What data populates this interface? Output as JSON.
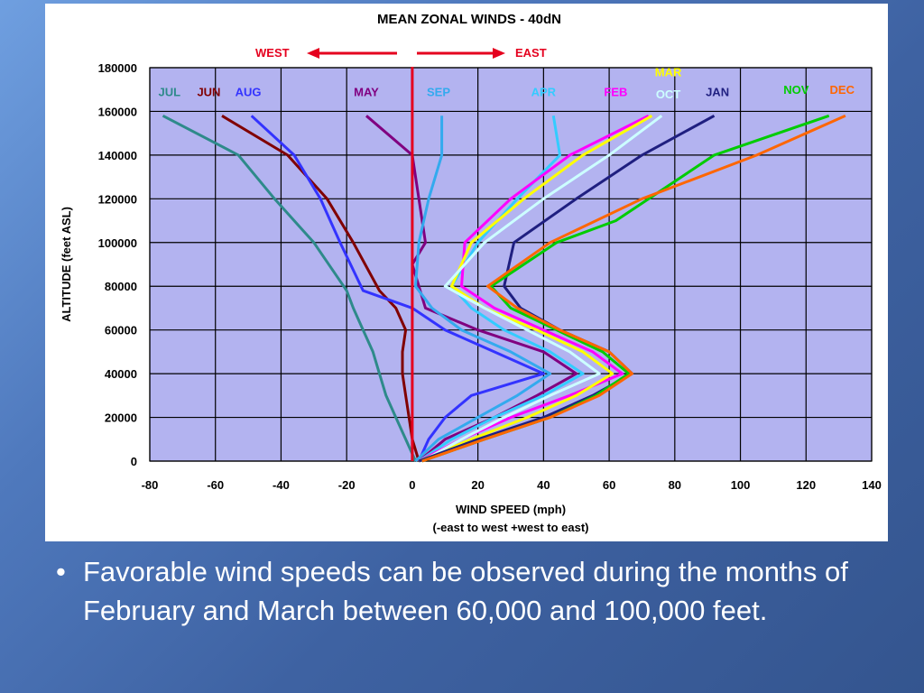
{
  "caption": {
    "bullet": "•",
    "text": "Favorable wind speeds can be observed during the months of February and March between 60,000 and 100,000 feet."
  },
  "chart_data": {
    "type": "line",
    "title": "MEAN ZONAL WINDS - 40dN",
    "xlabel": "WIND SPEED (mph)",
    "xlabel_note": "(-east to west  +west to east)",
    "ylabel": "ALTITUDE (feet ASL)",
    "xlim": [
      -80,
      140
    ],
    "ylim": [
      0,
      180000
    ],
    "x_ticks": [
      -80,
      -60,
      -40,
      -20,
      0,
      20,
      40,
      60,
      80,
      100,
      120,
      140
    ],
    "y_ticks": [
      0,
      20000,
      40000,
      60000,
      80000,
      100000,
      120000,
      140000,
      160000,
      180000
    ],
    "grid": true,
    "plot_bg": "#b3b3f0",
    "zero_line_color": "#e5001e",
    "direction_labels": {
      "west": "WEST",
      "east": "EAST",
      "arrow_color": "#e5001e"
    },
    "series": [
      {
        "name": "JUL",
        "color": "#2e8a8a",
        "points": [
          [
            1,
            0
          ],
          [
            -2,
            10000
          ],
          [
            -5,
            20000
          ],
          [
            -8,
            30000
          ],
          [
            -10,
            40000
          ],
          [
            -12,
            50000
          ],
          [
            -15,
            60000
          ],
          [
            -18,
            70000
          ],
          [
            -20,
            78000
          ],
          [
            -30,
            100000
          ],
          [
            -42,
            120000
          ],
          [
            -53,
            140000
          ],
          [
            -76,
            158000
          ]
        ]
      },
      {
        "name": "JUN",
        "color": "#800000",
        "points": [
          [
            2,
            0
          ],
          [
            0,
            10000
          ],
          [
            -1,
            20000
          ],
          [
            -2,
            30000
          ],
          [
            -3,
            40000
          ],
          [
            -3,
            50000
          ],
          [
            -2,
            60000
          ],
          [
            -5,
            70000
          ],
          [
            -10,
            78000
          ],
          [
            -18,
            100000
          ],
          [
            -26,
            120000
          ],
          [
            -38,
            140000
          ],
          [
            -58,
            158000
          ]
        ]
      },
      {
        "name": "AUG",
        "color": "#3333ff",
        "points": [
          [
            2,
            0
          ],
          [
            5,
            10000
          ],
          [
            10,
            20000
          ],
          [
            18,
            30000
          ],
          [
            40,
            40000
          ],
          [
            25,
            50000
          ],
          [
            10,
            60000
          ],
          [
            0,
            70000
          ],
          [
            -15,
            78000
          ],
          [
            -22,
            100000
          ],
          [
            -28,
            120000
          ],
          [
            -36,
            140000
          ],
          [
            -49,
            158000
          ]
        ]
      },
      {
        "name": "MAY",
        "color": "#800080",
        "points": [
          [
            2,
            0
          ],
          [
            10,
            10000
          ],
          [
            25,
            20000
          ],
          [
            38,
            30000
          ],
          [
            50,
            40000
          ],
          [
            40,
            50000
          ],
          [
            20,
            60000
          ],
          [
            4,
            70000
          ],
          [
            0,
            90000
          ],
          [
            4,
            100000
          ],
          [
            2,
            120000
          ],
          [
            0,
            140000
          ],
          [
            -14,
            158000
          ]
        ]
      },
      {
        "name": "SEP",
        "color": "#33aaee",
        "points": [
          [
            1,
            0
          ],
          [
            8,
            10000
          ],
          [
            20,
            20000
          ],
          [
            32,
            30000
          ],
          [
            42,
            40000
          ],
          [
            30,
            50000
          ],
          [
            15,
            60000
          ],
          [
            6,
            70000
          ],
          [
            1,
            80000
          ],
          [
            2,
            100000
          ],
          [
            5,
            120000
          ],
          [
            9,
            140000
          ],
          [
            9,
            158000
          ]
        ]
      },
      {
        "name": "APR",
        "color": "#33ccff",
        "points": [
          [
            2,
            0
          ],
          [
            12,
            10000
          ],
          [
            25,
            20000
          ],
          [
            40,
            30000
          ],
          [
            52,
            40000
          ],
          [
            42,
            50000
          ],
          [
            28,
            60000
          ],
          [
            18,
            70000
          ],
          [
            12,
            80000
          ],
          [
            20,
            100000
          ],
          [
            32,
            120000
          ],
          [
            45,
            140000
          ],
          [
            43,
            158000
          ]
        ]
      },
      {
        "name": "FEB",
        "color": "#ff00ff",
        "points": [
          [
            2,
            0
          ],
          [
            15,
            10000
          ],
          [
            30,
            20000
          ],
          [
            48,
            30000
          ],
          [
            64,
            40000
          ],
          [
            55,
            50000
          ],
          [
            40,
            60000
          ],
          [
            25,
            70000
          ],
          [
            15,
            80000
          ],
          [
            16,
            100000
          ],
          [
            30,
            120000
          ],
          [
            48,
            140000
          ],
          [
            72,
            158000
          ]
        ]
      },
      {
        "name": "MAR",
        "color": "#ffff00",
        "points": [
          [
            2,
            0
          ],
          [
            18,
            10000
          ],
          [
            35,
            20000
          ],
          [
            50,
            30000
          ],
          [
            61,
            40000
          ],
          [
            52,
            50000
          ],
          [
            38,
            60000
          ],
          [
            22,
            70000
          ],
          [
            12,
            80000
          ],
          [
            18,
            100000
          ],
          [
            34,
            120000
          ],
          [
            52,
            140000
          ],
          [
            73,
            158000
          ]
        ]
      },
      {
        "name": "OCT",
        "color": "#ccffff",
        "points": [
          [
            3,
            0
          ],
          [
            15,
            10000
          ],
          [
            28,
            20000
          ],
          [
            42,
            30000
          ],
          [
            57,
            40000
          ],
          [
            48,
            50000
          ],
          [
            35,
            60000
          ],
          [
            22,
            70000
          ],
          [
            10,
            80000
          ],
          [
            22,
            100000
          ],
          [
            40,
            120000
          ],
          [
            60,
            140000
          ],
          [
            76,
            158000
          ]
        ]
      },
      {
        "name": "JAN",
        "color": "#1f1f80",
        "points": [
          [
            2,
            0
          ],
          [
            20,
            10000
          ],
          [
            40,
            20000
          ],
          [
            55,
            30000
          ],
          [
            67,
            40000
          ],
          [
            60,
            50000
          ],
          [
            45,
            60000
          ],
          [
            33,
            70000
          ],
          [
            28,
            80000
          ],
          [
            31,
            100000
          ],
          [
            50,
            120000
          ],
          [
            70,
            140000
          ],
          [
            92,
            158000
          ]
        ]
      },
      {
        "name": "NOV",
        "color": "#00cc00",
        "points": [
          [
            3,
            0
          ],
          [
            22,
            10000
          ],
          [
            42,
            20000
          ],
          [
            56,
            30000
          ],
          [
            66,
            40000
          ],
          [
            58,
            50000
          ],
          [
            44,
            60000
          ],
          [
            30,
            70000
          ],
          [
            24,
            80000
          ],
          [
            44,
            100000
          ],
          [
            62,
            110000
          ],
          [
            92,
            140000
          ],
          [
            127,
            158000
          ]
        ]
      },
      {
        "name": "DEC",
        "color": "#ff6600",
        "points": [
          [
            3,
            0
          ],
          [
            22,
            10000
          ],
          [
            42,
            20000
          ],
          [
            57,
            30000
          ],
          [
            67,
            40000
          ],
          [
            60,
            50000
          ],
          [
            45,
            60000
          ],
          [
            32,
            70000
          ],
          [
            23,
            80000
          ],
          [
            42,
            100000
          ],
          [
            70,
            120000
          ],
          [
            105,
            140000
          ],
          [
            132,
            158000
          ]
        ]
      }
    ]
  }
}
